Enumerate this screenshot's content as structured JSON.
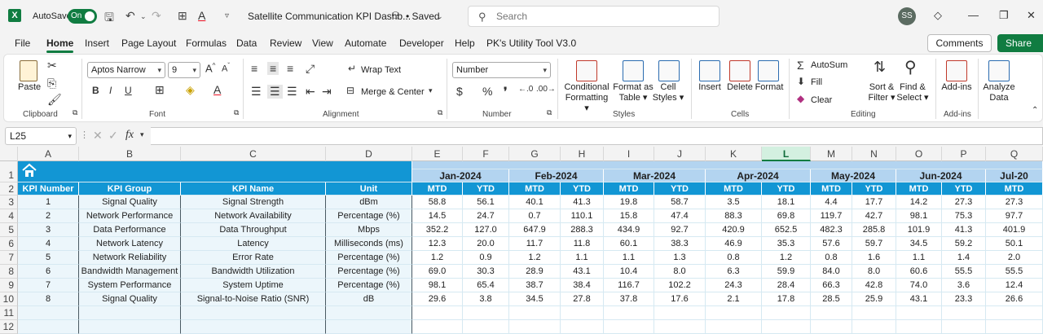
{
  "titlebar": {
    "app_logo": "X",
    "autosave_label": "AutoSave",
    "autosave_state": "On",
    "doc_title": "Satellite Communication KPI Dashb...",
    "saved_label": "• Saved",
    "search_placeholder": "Search",
    "user_initials": "SS"
  },
  "menu": {
    "tabs": [
      "File",
      "Home",
      "Insert",
      "Page Layout",
      "Formulas",
      "Data",
      "Review",
      "View",
      "Automate",
      "Developer",
      "Help",
      "PK's Utility Tool V3.0"
    ],
    "active": "Home",
    "comments_label": "Comments",
    "share_label": "Share"
  },
  "ribbon": {
    "clipboard": {
      "paste": "Paste",
      "label": "Clipboard"
    },
    "font": {
      "name": "Aptos Narrow",
      "size": "9",
      "label": "Font"
    },
    "alignment": {
      "wrap": "Wrap Text",
      "merge": "Merge & Center",
      "label": "Alignment"
    },
    "number": {
      "format": "Number",
      "label": "Number"
    },
    "styles": {
      "conditional": "Conditional",
      "conditional2": "Formatting",
      "format_as": "Format as",
      "format_as2": "Table",
      "cell": "Cell",
      "cell2": "Styles",
      "label": "Styles"
    },
    "cells": {
      "insert": "Insert",
      "delete": "Delete",
      "format": "Format",
      "label": "Cells"
    },
    "editing": {
      "autosum": "AutoSum",
      "fill": "Fill",
      "clear": "Clear",
      "sort": "Sort &",
      "sort2": "Filter",
      "find": "Find &",
      "find2": "Select",
      "label": "Editing"
    },
    "addins": {
      "addins": "Add-ins",
      "label": "Add-ins"
    },
    "analyze": {
      "line1": "Analyze",
      "line2": "Data"
    }
  },
  "formula_bar": {
    "name_box": "L25",
    "fx": "fx",
    "value": ""
  },
  "sheet": {
    "columns": [
      "A",
      "B",
      "C",
      "D",
      "E",
      "F",
      "G",
      "H",
      "I",
      "J",
      "K",
      "L",
      "M",
      "N",
      "O",
      "P",
      "Q"
    ],
    "selected_column": "L",
    "rows": [
      "1",
      "2",
      "3",
      "4",
      "5",
      "6",
      "7",
      "8",
      "9",
      "10",
      "11",
      "12"
    ],
    "headers": [
      "KPI Number",
      "KPI Group",
      "KPI Name",
      "Unit"
    ],
    "months": [
      "Jan-2024",
      "Feb-2024",
      "Mar-2024",
      "Apr-2024",
      "May-2024",
      "Jun-2024",
      "Jul-20"
    ],
    "sub_headers": [
      "MTD",
      "YTD"
    ],
    "kpis": [
      {
        "num": "1",
        "group": "Signal Quality",
        "name": "Signal Strength",
        "unit": "dBm",
        "values": [
          "58.8",
          "56.1",
          "40.1",
          "41.3",
          "19.8",
          "58.7",
          "3.5",
          "18.1",
          "4.4",
          "17.7",
          "14.2",
          "27.3",
          "27.3"
        ]
      },
      {
        "num": "2",
        "group": "Network Performance",
        "name": "Network Availability",
        "unit": "Percentage (%)",
        "values": [
          "14.5",
          "24.7",
          "0.7",
          "110.1",
          "15.8",
          "47.4",
          "88.3",
          "69.8",
          "119.7",
          "42.7",
          "98.1",
          "75.3",
          "97.7"
        ]
      },
      {
        "num": "3",
        "group": "Data Performance",
        "name": "Data Throughput",
        "unit": "Mbps",
        "values": [
          "352.2",
          "127.0",
          "647.9",
          "288.3",
          "434.9",
          "92.7",
          "420.9",
          "652.5",
          "482.3",
          "285.8",
          "101.9",
          "41.3",
          "401.9"
        ]
      },
      {
        "num": "4",
        "group": "Network Latency",
        "name": "Latency",
        "unit": "Milliseconds (ms)",
        "values": [
          "12.3",
          "20.0",
          "11.7",
          "11.8",
          "60.1",
          "38.3",
          "46.9",
          "35.3",
          "57.6",
          "59.7",
          "34.5",
          "59.2",
          "50.1"
        ]
      },
      {
        "num": "5",
        "group": "Network Reliability",
        "name": "Error Rate",
        "unit": "Percentage (%)",
        "values": [
          "1.2",
          "0.9",
          "1.2",
          "1.1",
          "1.1",
          "1.3",
          "0.8",
          "1.2",
          "0.8",
          "1.6",
          "1.1",
          "1.4",
          "2.0"
        ]
      },
      {
        "num": "6",
        "group": "Bandwidth Management",
        "name": "Bandwidth Utilization",
        "unit": "Percentage (%)",
        "values": [
          "69.0",
          "30.3",
          "28.9",
          "43.1",
          "10.4",
          "8.0",
          "6.3",
          "59.9",
          "84.0",
          "8.0",
          "60.6",
          "55.5",
          "55.5"
        ]
      },
      {
        "num": "7",
        "group": "System Performance",
        "name": "System Uptime",
        "unit": "Percentage (%)",
        "values": [
          "98.1",
          "65.4",
          "38.7",
          "38.4",
          "116.7",
          "102.2",
          "24.3",
          "28.4",
          "66.3",
          "42.8",
          "74.0",
          "3.6",
          "12.4"
        ]
      },
      {
        "num": "8",
        "group": "Signal Quality",
        "name": "Signal-to-Noise Ratio (SNR)",
        "unit": "dB",
        "values": [
          "29.6",
          "3.8",
          "34.5",
          "27.8",
          "37.8",
          "17.6",
          "2.1",
          "17.8",
          "28.5",
          "25.9",
          "43.1",
          "23.3",
          "26.6"
        ]
      }
    ]
  },
  "colors": {
    "accent": "#107c41",
    "header_blue": "#1296d4",
    "month_blue": "#b3d4f0",
    "cell_light": "#ecf6fb"
  }
}
